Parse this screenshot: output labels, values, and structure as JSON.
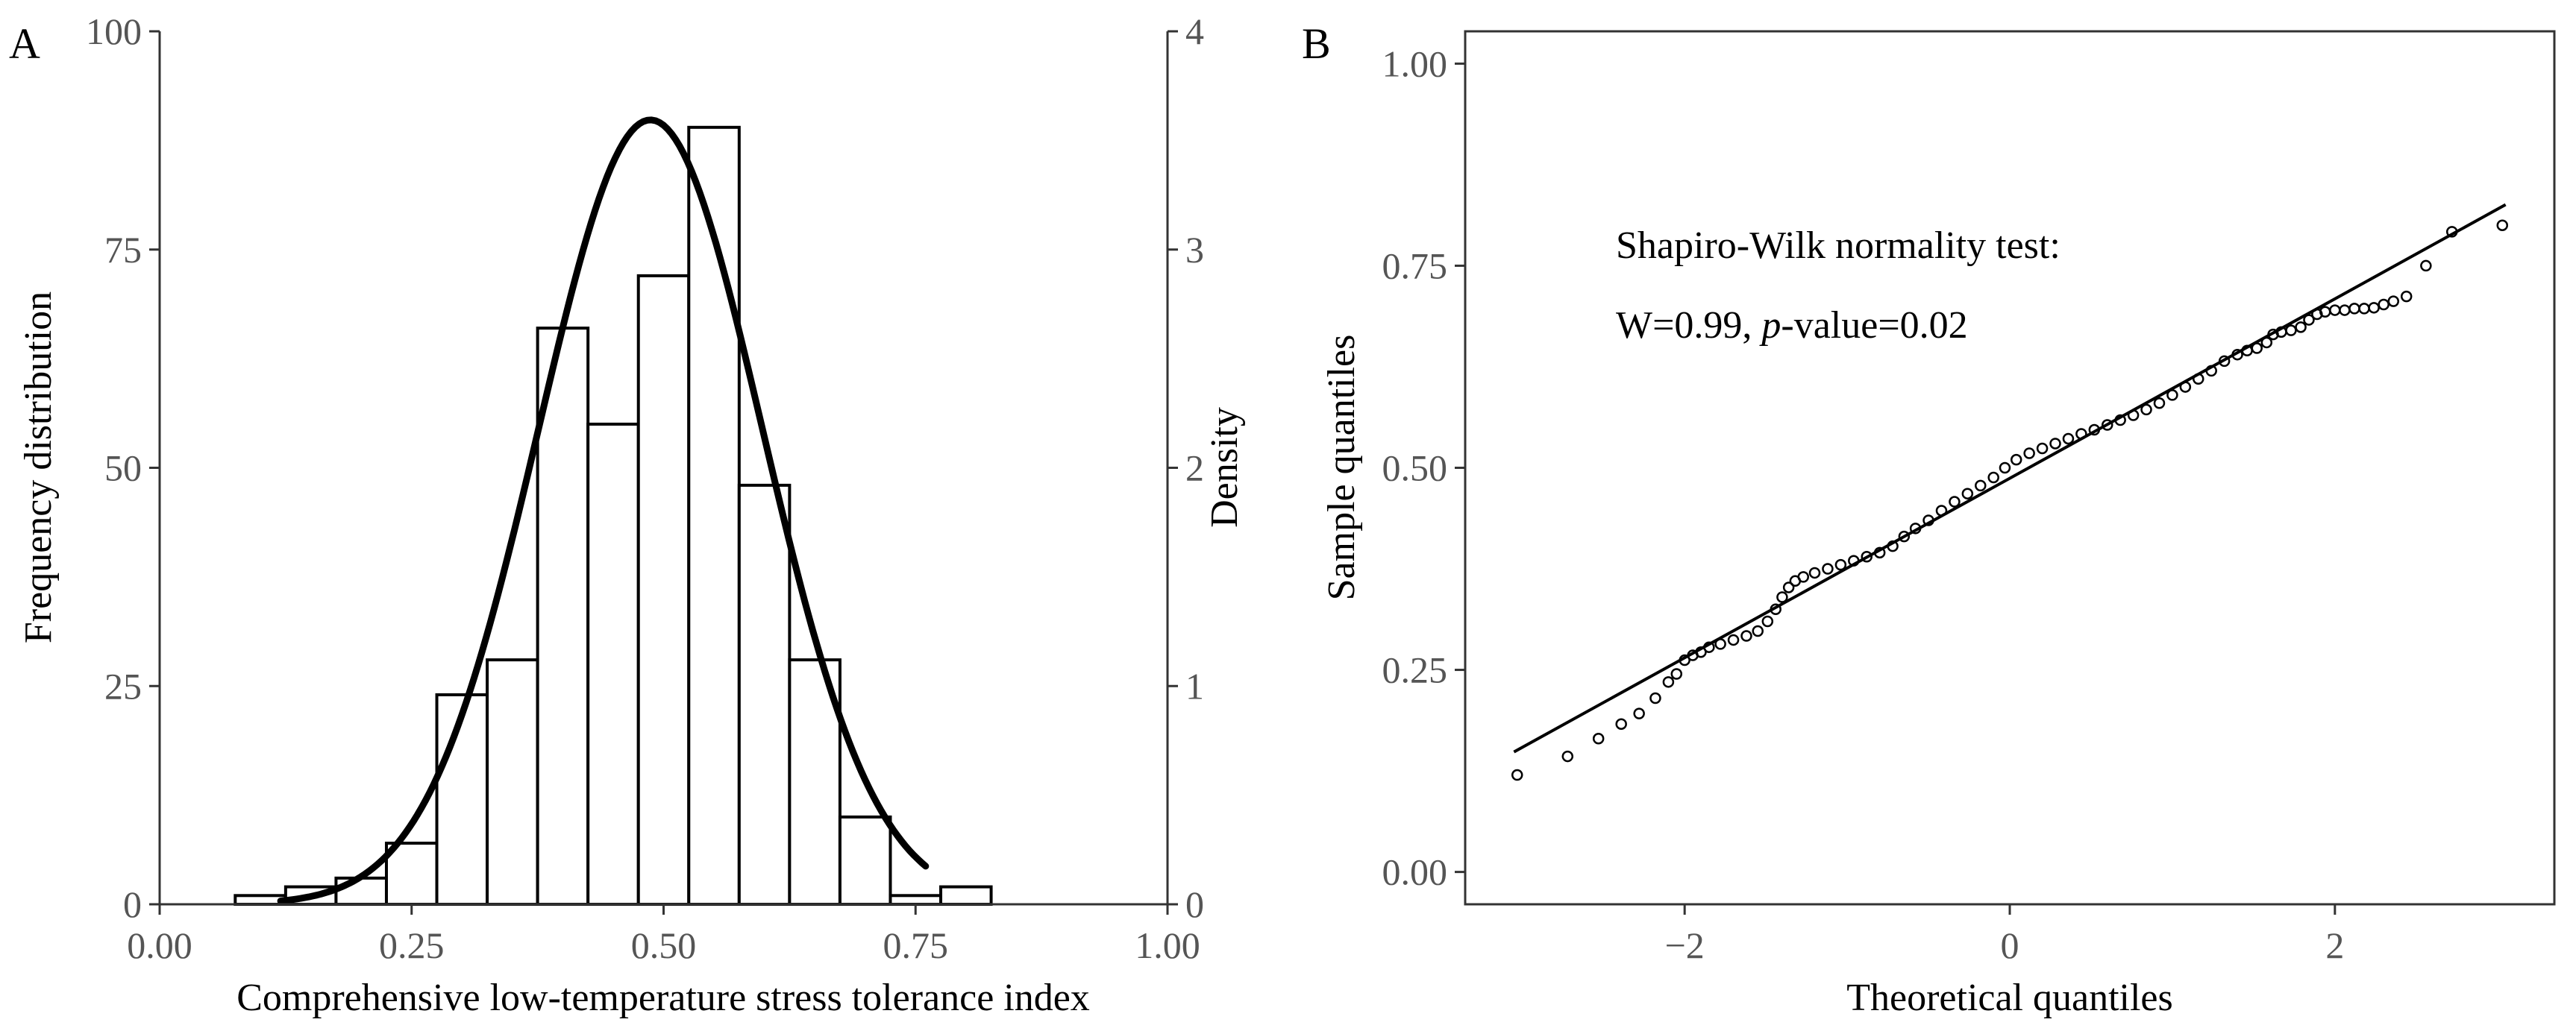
{
  "chart_data": [
    {
      "panel_label": "A",
      "type": "bar",
      "subtype": "histogram-with-density-curve",
      "xlabel": "Comprehensive low-temperature stress tolerance index",
      "ylabel": "Frequency distribution",
      "y2label": "Density",
      "xlim": [
        0,
        1
      ],
      "ylim": [
        0,
        100
      ],
      "y2lim": [
        0,
        4
      ],
      "xticks": [
        "0.00",
        "0.25",
        "0.50",
        "0.75",
        "1.00"
      ],
      "yticks": [
        "0",
        "25",
        "50",
        "75",
        "100"
      ],
      "y2ticks": [
        "0",
        "1",
        "2",
        "3",
        "4"
      ],
      "grid": false,
      "bins": [
        {
          "x0": 0.075,
          "x1": 0.125,
          "count": 1
        },
        {
          "x0": 0.125,
          "x1": 0.175,
          "count": 2
        },
        {
          "x0": 0.175,
          "x1": 0.225,
          "count": 3
        },
        {
          "x0": 0.225,
          "x1": 0.275,
          "count": 7
        },
        {
          "x0": 0.275,
          "x1": 0.325,
          "count": 24
        },
        {
          "x0": 0.325,
          "x1": 0.375,
          "count": 28
        },
        {
          "x0": 0.375,
          "x1": 0.425,
          "count": 66
        },
        {
          "x0": 0.425,
          "x1": 0.475,
          "count": 55
        },
        {
          "x0": 0.475,
          "x1": 0.525,
          "count": 72
        },
        {
          "x0": 0.525,
          "x1": 0.575,
          "count": 89
        },
        {
          "x0": 0.575,
          "x1": 0.625,
          "count": 48
        },
        {
          "x0": 0.625,
          "x1": 0.675,
          "count": 28
        },
        {
          "x0": 0.675,
          "x1": 0.725,
          "count": 10
        },
        {
          "x0": 0.725,
          "x1": 0.775,
          "count": 1
        },
        {
          "x0": 0.775,
          "x1": 0.825,
          "count": 2
        }
      ],
      "density_curve": {
        "mean": 0.487,
        "sd": 0.111,
        "x_range": [
          0.12,
          0.76
        ],
        "y_axis": "secondary"
      }
    },
    {
      "panel_label": "B",
      "type": "scatter",
      "subtype": "qq-plot",
      "xlabel": "Theoretical quantiles",
      "ylabel": "Sample quantiles",
      "xlim": [
        -3.35,
        3.35
      ],
      "ylim": [
        -0.04,
        1.04
      ],
      "xticks": [
        -2,
        0,
        2
      ],
      "xtick_labels": [
        "−2",
        "0",
        "2"
      ],
      "yticks": [
        "0.00",
        "0.25",
        "0.50",
        "0.75",
        "1.00"
      ],
      "grid": false,
      "annotation": {
        "line1": "Shapiro-Wilk normality test:",
        "line2_prefix": "W=0.99, ",
        "line2_italic": "p",
        "line2_suffix": "-value=0.02"
      },
      "reference_line": {
        "intercept": 0.487,
        "slope": 0.111,
        "x_range": [
          -3.05,
          3.05
        ]
      },
      "points": [
        [
          -3.03,
          0.12
        ],
        [
          -2.72,
          0.143
        ],
        [
          -2.53,
          0.165
        ],
        [
          -2.39,
          0.183
        ],
        [
          -2.28,
          0.196
        ],
        [
          -2.18,
          0.215
        ],
        [
          -2.1,
          0.235
        ],
        [
          -2.05,
          0.245
        ],
        [
          -2.0,
          0.262
        ],
        [
          -1.95,
          0.268
        ],
        [
          -1.9,
          0.272
        ],
        [
          -1.85,
          0.278
        ],
        [
          -1.78,
          0.282
        ],
        [
          -1.7,
          0.287
        ],
        [
          -1.62,
          0.292
        ],
        [
          -1.55,
          0.298
        ],
        [
          -1.49,
          0.31
        ],
        [
          -1.44,
          0.325
        ],
        [
          -1.4,
          0.34
        ],
        [
          -1.36,
          0.352
        ],
        [
          -1.32,
          0.36
        ],
        [
          -1.27,
          0.365
        ],
        [
          -1.2,
          0.37
        ],
        [
          -1.12,
          0.375
        ],
        [
          -1.04,
          0.38
        ],
        [
          -0.96,
          0.385
        ],
        [
          -0.88,
          0.39
        ],
        [
          -0.8,
          0.395
        ],
        [
          -0.72,
          0.403
        ],
        [
          -0.65,
          0.415
        ],
        [
          -0.58,
          0.425
        ],
        [
          -0.5,
          0.435
        ],
        [
          -0.42,
          0.447
        ],
        [
          -0.34,
          0.458
        ],
        [
          -0.26,
          0.468
        ],
        [
          -0.18,
          0.478
        ],
        [
          -0.1,
          0.488
        ],
        [
          -0.03,
          0.5
        ],
        [
          0.04,
          0.51
        ],
        [
          0.12,
          0.518
        ],
        [
          0.2,
          0.524
        ],
        [
          0.28,
          0.53
        ],
        [
          0.36,
          0.536
        ],
        [
          0.44,
          0.542
        ],
        [
          0.52,
          0.547
        ],
        [
          0.6,
          0.553
        ],
        [
          0.68,
          0.559
        ],
        [
          0.76,
          0.565
        ],
        [
          0.84,
          0.572
        ],
        [
          0.92,
          0.58
        ],
        [
          1.0,
          0.59
        ],
        [
          1.08,
          0.6
        ],
        [
          1.16,
          0.61
        ],
        [
          1.24,
          0.62
        ],
        [
          1.32,
          0.632
        ],
        [
          1.4,
          0.64
        ],
        [
          1.46,
          0.645
        ],
        [
          1.52,
          0.648
        ],
        [
          1.58,
          0.655
        ],
        [
          1.62,
          0.665
        ],
        [
          1.67,
          0.668
        ],
        [
          1.73,
          0.67
        ],
        [
          1.79,
          0.674
        ],
        [
          1.84,
          0.683
        ],
        [
          1.89,
          0.69
        ],
        [
          1.94,
          0.693
        ],
        [
          2.0,
          0.695
        ],
        [
          2.06,
          0.695
        ],
        [
          2.12,
          0.697
        ],
        [
          2.18,
          0.697
        ],
        [
          2.24,
          0.698
        ],
        [
          2.3,
          0.702
        ],
        [
          2.36,
          0.706
        ],
        [
          2.44,
          0.712
        ],
        [
          2.56,
          0.75
        ],
        [
          2.72,
          0.792
        ],
        [
          3.03,
          0.8
        ]
      ]
    }
  ]
}
